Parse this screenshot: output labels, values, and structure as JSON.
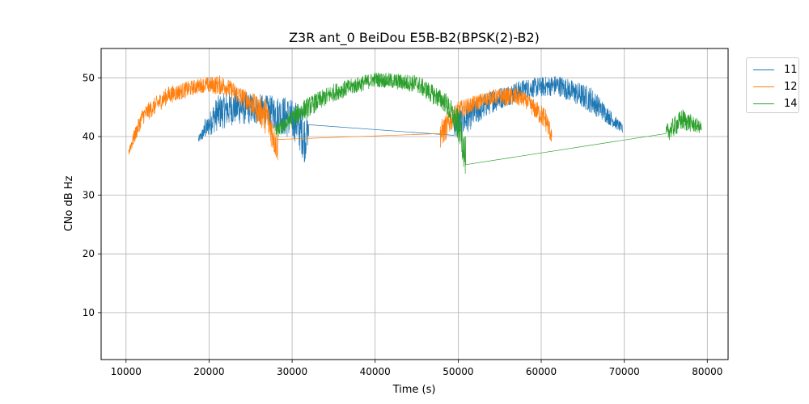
{
  "chart_data": {
    "type": "line",
    "title": "Z3R ant_0 BeiDou E5B-B2(BPSK(2)-B2)",
    "xlabel": "Time (s)",
    "ylabel": "CNo dB Hz",
    "xlim": [
      7000,
      82500
    ],
    "ylim": [
      2,
      55
    ],
    "xticks": [
      10000,
      20000,
      30000,
      40000,
      50000,
      60000,
      70000,
      80000
    ],
    "yticks": [
      10,
      20,
      30,
      40,
      50
    ],
    "grid": true,
    "legend_position": "outside-top-right",
    "series": [
      {
        "name": "11",
        "color": "#1f77b4",
        "points": [
          [
            18700,
            39.5
          ],
          [
            19500,
            43
          ],
          [
            20500,
            45
          ],
          [
            21500,
            45.5
          ],
          [
            22500,
            45
          ],
          [
            23500,
            46.5
          ],
          [
            24500,
            46
          ],
          [
            25500,
            45
          ],
          [
            26500,
            46
          ],
          [
            27500,
            46.5
          ],
          [
            28500,
            45.5
          ],
          [
            29500,
            46
          ],
          [
            30500,
            44.5
          ],
          [
            31200,
            42
          ],
          [
            31700,
            39
          ],
          [
            32000,
            42
          ],
          [
            49500,
            40.2
          ],
          [
            50500,
            44
          ],
          [
            52000,
            46
          ],
          [
            54000,
            47
          ],
          [
            56000,
            48.2
          ],
          [
            58000,
            48.8
          ],
          [
            60000,
            49.2
          ],
          [
            62000,
            49
          ],
          [
            64000,
            48.2
          ],
          [
            65500,
            47
          ],
          [
            67000,
            45
          ],
          [
            68500,
            42.5
          ],
          [
            69800,
            41
          ]
        ],
        "min_points": [
          [
            18700,
            38.8
          ],
          [
            21000,
            41
          ],
          [
            23000,
            42
          ],
          [
            25000,
            42
          ],
          [
            27000,
            42
          ],
          [
            29000,
            40
          ],
          [
            30500,
            39
          ],
          [
            31500,
            35.5
          ],
          [
            32000,
            39
          ],
          [
            50500,
            40
          ],
          [
            54000,
            44
          ],
          [
            58000,
            46.5
          ],
          [
            62000,
            47
          ],
          [
            66000,
            44
          ],
          [
            69800,
            40.5
          ]
        ],
        "max_points": [
          [
            18700,
            40
          ],
          [
            21000,
            47
          ],
          [
            23000,
            48
          ],
          [
            25000,
            47.5
          ],
          [
            27000,
            47
          ],
          [
            29000,
            47
          ],
          [
            30500,
            46
          ],
          [
            31500,
            44
          ],
          [
            32000,
            43
          ],
          [
            50500,
            45
          ],
          [
            54000,
            48
          ],
          [
            58000,
            49.8
          ],
          [
            62000,
            50.5
          ],
          [
            66000,
            48.5
          ],
          [
            69800,
            42
          ]
        ]
      },
      {
        "name": "12",
        "color": "#ff7f0e",
        "points": [
          [
            10300,
            37.5
          ],
          [
            11000,
            41
          ],
          [
            12000,
            43.5
          ],
          [
            13500,
            45
          ],
          [
            15000,
            47
          ],
          [
            16500,
            48
          ],
          [
            18000,
            48.5
          ],
          [
            19500,
            49
          ],
          [
            21000,
            49.2
          ],
          [
            22500,
            48.8
          ],
          [
            24000,
            47.5
          ],
          [
            25500,
            46.2
          ],
          [
            26500,
            45
          ],
          [
            27300,
            42
          ],
          [
            27800,
            40
          ],
          [
            28200,
            38
          ],
          [
            28300,
            39.5
          ],
          [
            47800,
            40.5
          ],
          [
            48200,
            42
          ],
          [
            49000,
            44
          ],
          [
            51000,
            45.2
          ],
          [
            53000,
            46.5
          ],
          [
            55000,
            47.2
          ],
          [
            57000,
            47.2
          ],
          [
            58500,
            46.5
          ],
          [
            59500,
            45
          ],
          [
            60500,
            43
          ],
          [
            61300,
            40
          ]
        ],
        "min_points": [
          [
            10300,
            36.5
          ],
          [
            12000,
            42
          ],
          [
            15000,
            45.5
          ],
          [
            19000,
            47.5
          ],
          [
            22000,
            47
          ],
          [
            25000,
            44
          ],
          [
            27000,
            40
          ],
          [
            28200,
            35.5
          ],
          [
            48000,
            38
          ],
          [
            50000,
            43
          ],
          [
            54000,
            45.5
          ],
          [
            58000,
            45
          ],
          [
            60500,
            41
          ],
          [
            61300,
            38.5
          ]
        ],
        "max_points": [
          [
            10300,
            38.5
          ],
          [
            12000,
            45
          ],
          [
            15000,
            48.5
          ],
          [
            19000,
            50
          ],
          [
            21500,
            50.5
          ],
          [
            25000,
            47.5
          ],
          [
            27000,
            46.5
          ],
          [
            28200,
            41
          ],
          [
            48000,
            43
          ],
          [
            50000,
            46
          ],
          [
            54000,
            48
          ],
          [
            57000,
            48.5
          ],
          [
            60500,
            45
          ],
          [
            61300,
            41.5
          ]
        ]
      },
      {
        "name": "14",
        "color": "#2ca02c",
        "points": [
          [
            28000,
            41
          ],
          [
            29000,
            43
          ],
          [
            30500,
            44.5
          ],
          [
            32000,
            45.5
          ],
          [
            34000,
            47.5
          ],
          [
            36000,
            48.5
          ],
          [
            38000,
            49.3
          ],
          [
            40000,
            49.7
          ],
          [
            42000,
            49.7
          ],
          [
            44000,
            49.3
          ],
          [
            46000,
            48.5
          ],
          [
            47500,
            47.5
          ],
          [
            48500,
            46
          ],
          [
            49500,
            44
          ],
          [
            50300,
            41
          ],
          [
            50800,
            37
          ],
          [
            50900,
            35.2
          ],
          [
            75000,
            40.5
          ],
          [
            75500,
            41.5
          ],
          [
            76500,
            42.5
          ],
          [
            77500,
            43
          ],
          [
            78500,
            42
          ],
          [
            79300,
            41.5
          ]
        ],
        "min_points": [
          [
            28000,
            39.5
          ],
          [
            31000,
            42.5
          ],
          [
            35000,
            46
          ],
          [
            40000,
            48.5
          ],
          [
            45000,
            47.5
          ],
          [
            48500,
            44
          ],
          [
            50300,
            38
          ],
          [
            50800,
            33.3
          ],
          [
            75000,
            39
          ],
          [
            77000,
            41
          ],
          [
            79300,
            40.5
          ]
        ],
        "max_points": [
          [
            28000,
            42
          ],
          [
            31000,
            46
          ],
          [
            35000,
            49
          ],
          [
            40000,
            51
          ],
          [
            45000,
            50.5
          ],
          [
            48500,
            47.5
          ],
          [
            50300,
            44
          ],
          [
            50800,
            40
          ],
          [
            75000,
            42
          ],
          [
            77000,
            44.8
          ],
          [
            79300,
            42.5
          ]
        ]
      }
    ]
  }
}
